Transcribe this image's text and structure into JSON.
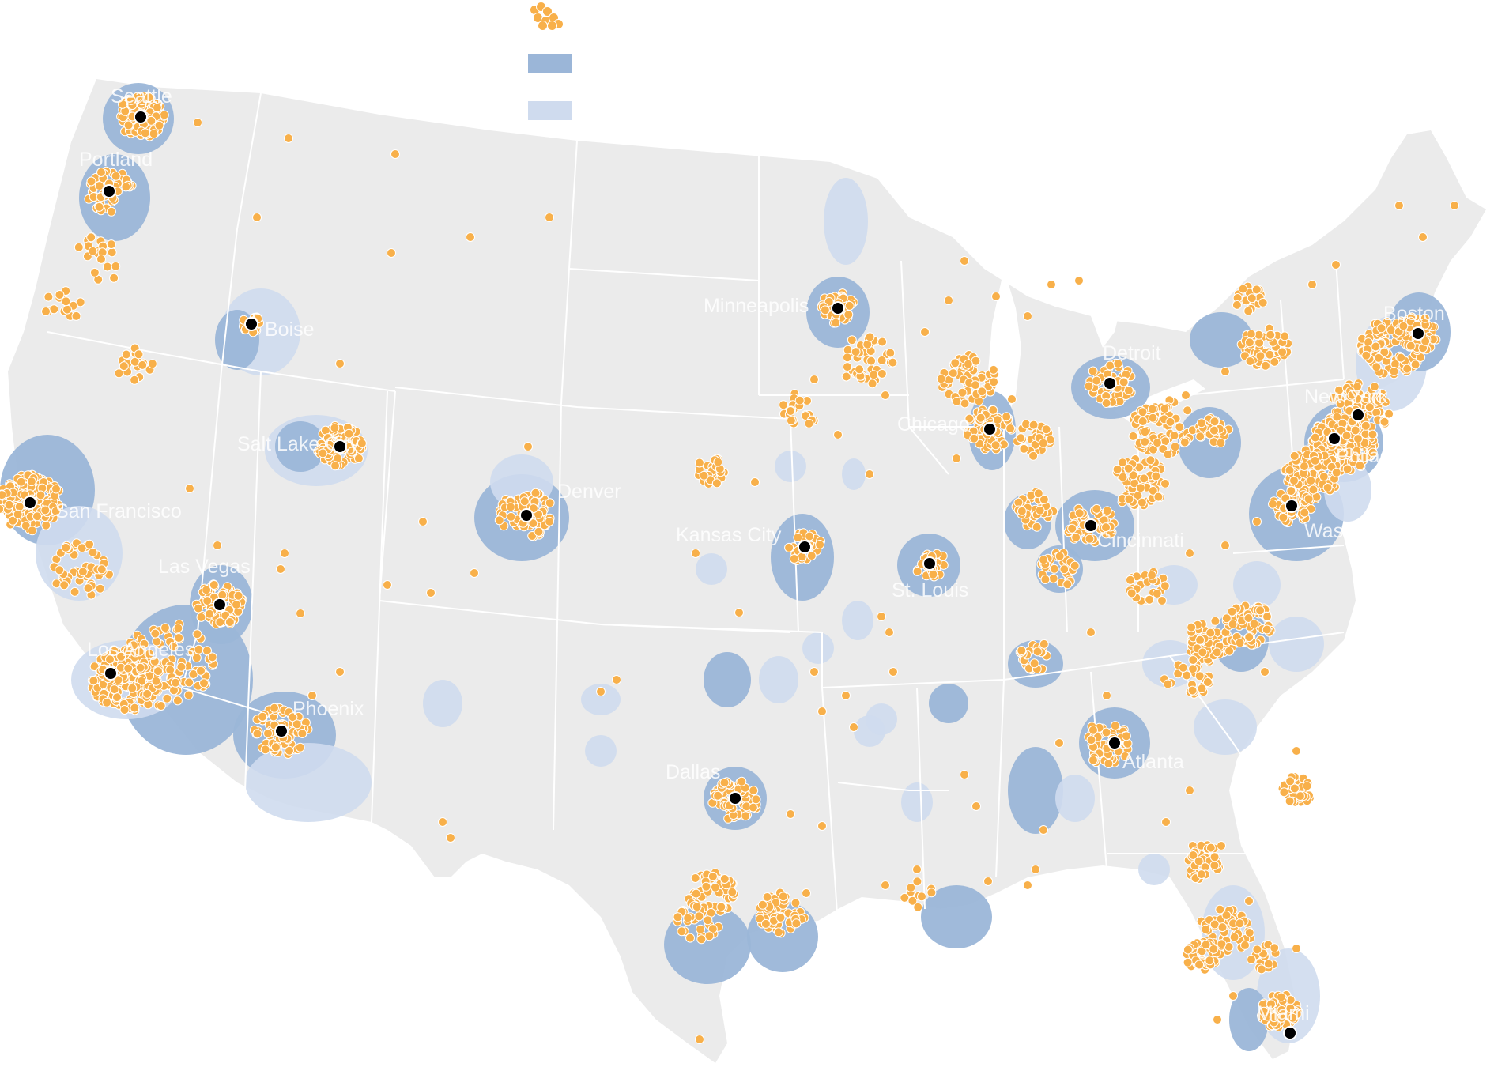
{
  "colors": {
    "land": "#ebebeb",
    "state_border": "#ffffff",
    "water": "#ffffff",
    "dot": "#f8b04a",
    "dot_stroke": "#ffffff",
    "city_marker": "#000000",
    "metro_dark": "#9bb6d8",
    "metro_light": "#cfdbee"
  },
  "legend": {
    "items": [
      {
        "icon": "dots-icon",
        "label": ""
      },
      {
        "icon": "dark-blue-swatch",
        "label": ""
      },
      {
        "icon": "light-blue-swatch",
        "label": ""
      }
    ]
  },
  "cities": [
    {
      "name": "Seattle",
      "label": "Seattle"
    },
    {
      "name": "Portland",
      "label": "Portland"
    },
    {
      "name": "San Francisco",
      "label": "San Francisco"
    },
    {
      "name": "Los Angeles",
      "label": "Los Angeles"
    },
    {
      "name": "Las Vegas",
      "label": "Las Vegas"
    },
    {
      "name": "Boise",
      "label": "Boise"
    },
    {
      "name": "Salt Lake City",
      "label": "Salt Lake City"
    },
    {
      "name": "Phoenix",
      "label": "Phoenix"
    },
    {
      "name": "Denver",
      "label": "Denver"
    },
    {
      "name": "Dallas",
      "label": "Dallas"
    },
    {
      "name": "Kansas City",
      "label": "Kansas City"
    },
    {
      "name": "Minneapolis",
      "label": "Minneapolis"
    },
    {
      "name": "St. Louis",
      "label": "St. Louis"
    },
    {
      "name": "Chicago",
      "label": "Chicago"
    },
    {
      "name": "Detroit",
      "label": "Detroit"
    },
    {
      "name": "Cincinnati",
      "label": "Cincinnati"
    },
    {
      "name": "Atlanta",
      "label": "Atlanta"
    },
    {
      "name": "Washington",
      "label": "Washington"
    },
    {
      "name": "Philadelphia",
      "label": "Philadelphia"
    },
    {
      "name": "New York",
      "label": "New York"
    },
    {
      "name": "Boston",
      "label": "Boston"
    },
    {
      "name": "Miami",
      "label": "Miami"
    }
  ]
}
